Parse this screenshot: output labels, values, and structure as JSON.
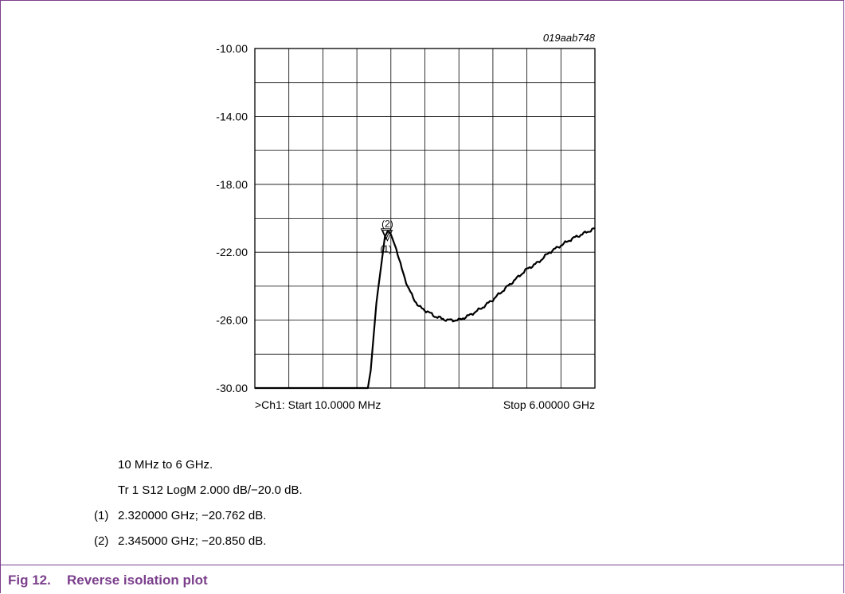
{
  "chart_data": {
    "type": "line",
    "figure_id": "019aab748",
    "yticks": [
      "-10.00",
      "-14.00",
      "-18.00",
      "-22.00",
      "-26.00",
      "-30.00"
    ],
    "ylim": [
      -30,
      -10
    ],
    "y_grid_step": 2,
    "x_grid_divisions": 10,
    "grid": true,
    "start_label": ">Ch1: Start 10.0000 MHz",
    "stop_label": "Stop 6.00000 GHz",
    "x_range_ghz": [
      0.01,
      6.0
    ],
    "series": [
      {
        "x": [
          0.01,
          1.0,
          2.0,
          2.05,
          2.15,
          2.3,
          2.35,
          2.4,
          2.5,
          2.6,
          2.7,
          2.8,
          2.9,
          3.0,
          3.2,
          3.4,
          3.6,
          3.8,
          4.0,
          4.2,
          4.4,
          4.6,
          4.8,
          5.0,
          5.2,
          5.4,
          5.6,
          5.8,
          6.0
        ],
        "y": [
          -30.0,
          -30.0,
          -30.0,
          -29.0,
          -25.0,
          -21.1,
          -20.76,
          -20.9,
          -21.8,
          -23.0,
          -24.0,
          -24.7,
          -25.2,
          -25.4,
          -25.8,
          -26.0,
          -26.0,
          -25.7,
          -25.3,
          -24.8,
          -24.2,
          -23.6,
          -23.0,
          -22.6,
          -22.0,
          -21.6,
          -21.2,
          -20.9,
          -20.6
        ]
      }
    ],
    "markers": [
      {
        "label": "(2)",
        "x": 2.345,
        "y": -20.85,
        "position": "above"
      },
      {
        "label": "(1)",
        "x": 2.32,
        "y": -20.762,
        "position": "below"
      }
    ]
  },
  "notes": {
    "range": "10 MHz to 6 GHz.",
    "trace": "Tr 1 S12 LogM 2.000 dB/−20.0 dB.",
    "marker1_num": "(1)",
    "marker1_text": "2.320000 GHz; −20.762 dB.",
    "marker2_num": "(2)",
    "marker2_text": "2.345000 GHz; −20.850 dB."
  },
  "caption": {
    "number": "Fig 12.",
    "title": "Reverse isolation plot"
  }
}
